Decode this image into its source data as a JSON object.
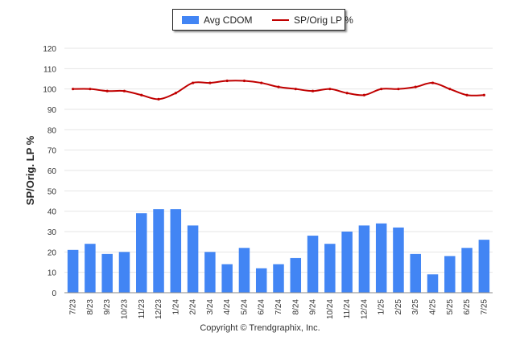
{
  "chart_data": {
    "type": "bar",
    "ylabel": "SP/Orig. LP %",
    "ylim": [
      0,
      120
    ],
    "yticks": [
      0,
      10,
      20,
      30,
      40,
      50,
      60,
      70,
      80,
      90,
      100,
      110,
      120
    ],
    "grid": true,
    "legend_position": "top-center",
    "categories": [
      "7/23",
      "8/23",
      "9/23",
      "10/23",
      "11/23",
      "12/23",
      "1/24",
      "2/24",
      "3/24",
      "4/24",
      "5/24",
      "6/24",
      "7/24",
      "8/24",
      "9/24",
      "10/24",
      "11/24",
      "12/24",
      "1/25",
      "2/25",
      "3/25",
      "4/25",
      "5/25",
      "6/25",
      "7/25"
    ],
    "series": [
      {
        "name": "Avg CDOM",
        "kind": "bar",
        "color": "#4285F4",
        "values": [
          21,
          24,
          19,
          20,
          39,
          41,
          41,
          33,
          20,
          14,
          22,
          12,
          14,
          17,
          28,
          24,
          30,
          33,
          34,
          32,
          19,
          9,
          18,
          22,
          26
        ]
      },
      {
        "name": "SP/Orig LP %",
        "kind": "line",
        "color": "#C00000",
        "values": [
          100,
          100,
          99,
          99,
          97,
          95,
          98,
          103,
          103,
          104,
          104,
          103,
          101,
          100,
          99,
          100,
          98,
          97,
          100,
          100,
          101,
          103,
          100,
          97,
          97
        ]
      }
    ]
  },
  "footer": {
    "copyright": "Copyright © Trendgraphix, Inc."
  }
}
